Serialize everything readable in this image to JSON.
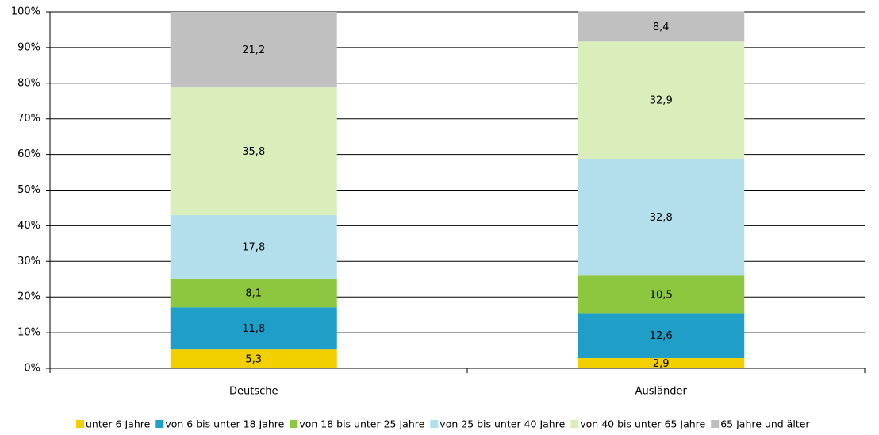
{
  "chart_data": {
    "type": "stacked_bar",
    "categories": [
      "Deutsche",
      "Ausländer"
    ],
    "series": [
      {
        "name": "unter 6 Jahre",
        "color": "#f2d000",
        "values": [
          5.3,
          2.9
        ],
        "value_labels": [
          "5,3",
          "2,9"
        ]
      },
      {
        "name": "von 6 bis unter 18 Jahre",
        "color": "#1f9ec8",
        "values": [
          11.8,
          12.6
        ],
        "value_labels": [
          "11,8",
          "12,6"
        ]
      },
      {
        "name": "von 18 bis unter 25 Jahre",
        "color": "#8dc63f",
        "values": [
          8.1,
          10.5
        ],
        "value_labels": [
          "8,1",
          "10,5"
        ]
      },
      {
        "name": "von 25 bis unter 40 Jahre",
        "color": "#b3deeb",
        "values": [
          17.8,
          32.8
        ],
        "value_labels": [
          "17,8",
          "32,8"
        ]
      },
      {
        "name": "von 40 bis unter 65 Jahre",
        "color": "#d9eebb",
        "values": [
          35.8,
          32.9
        ],
        "value_labels": [
          "35,8",
          "32,9"
        ]
      },
      {
        "name": "65 Jahre und älter",
        "color": "#c0c0c0",
        "values": [
          21.2,
          8.4
        ],
        "value_labels": [
          "21,2",
          "8,4"
        ]
      }
    ],
    "ylim": [
      0,
      100
    ],
    "yticks": [
      {
        "value": 0,
        "label": "0%"
      },
      {
        "value": 10,
        "label": "10%"
      },
      {
        "value": 20,
        "label": "20%"
      },
      {
        "value": 30,
        "label": "30%"
      },
      {
        "value": 40,
        "label": "40%"
      },
      {
        "value": 50,
        "label": "50%"
      },
      {
        "value": 60,
        "label": "60%"
      },
      {
        "value": 70,
        "label": "70%"
      },
      {
        "value": 80,
        "label": "80%"
      },
      {
        "value": 90,
        "label": "90%"
      },
      {
        "value": 100,
        "label": "100%"
      }
    ],
    "grid": true,
    "legend": "bottom"
  }
}
